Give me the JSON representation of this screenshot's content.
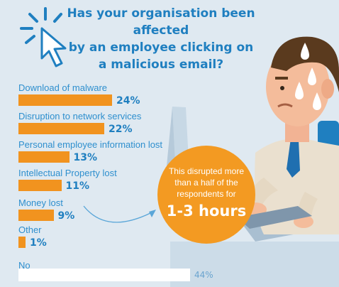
{
  "title": "Has your organisation been affected by an employee clicking on a malicious email?",
  "title_lines": [
    "Has your organisation been affected",
    "by an employee clicking on",
    "a malicious email?"
  ],
  "callout": {
    "lines": [
      "This disrupted more",
      "than a half of the",
      "respondents for"
    ],
    "highlight": "1-3 hours"
  },
  "colors": {
    "background": "#dfe9f1",
    "title": "#1f7fc0",
    "label": "#2e8fce",
    "bar": "#f1931f",
    "no_bar": "#ffffff",
    "callout": "#f39a22"
  },
  "chart_data": {
    "type": "bar",
    "orientation": "horizontal",
    "categories": [
      "Download of malware",
      "Disruption to network services",
      "Personal employee information lost",
      "Intellectual Property lost",
      "Money lost",
      "Other",
      "No"
    ],
    "values": [
      24,
      22,
      13,
      11,
      9,
      1,
      44
    ],
    "value_labels": [
      "24%",
      "22%",
      "13%",
      "11%",
      "9%",
      "1%",
      "44%"
    ],
    "unit": "%",
    "xlim": [
      0,
      44
    ],
    "grid": false,
    "legend": "none"
  }
}
